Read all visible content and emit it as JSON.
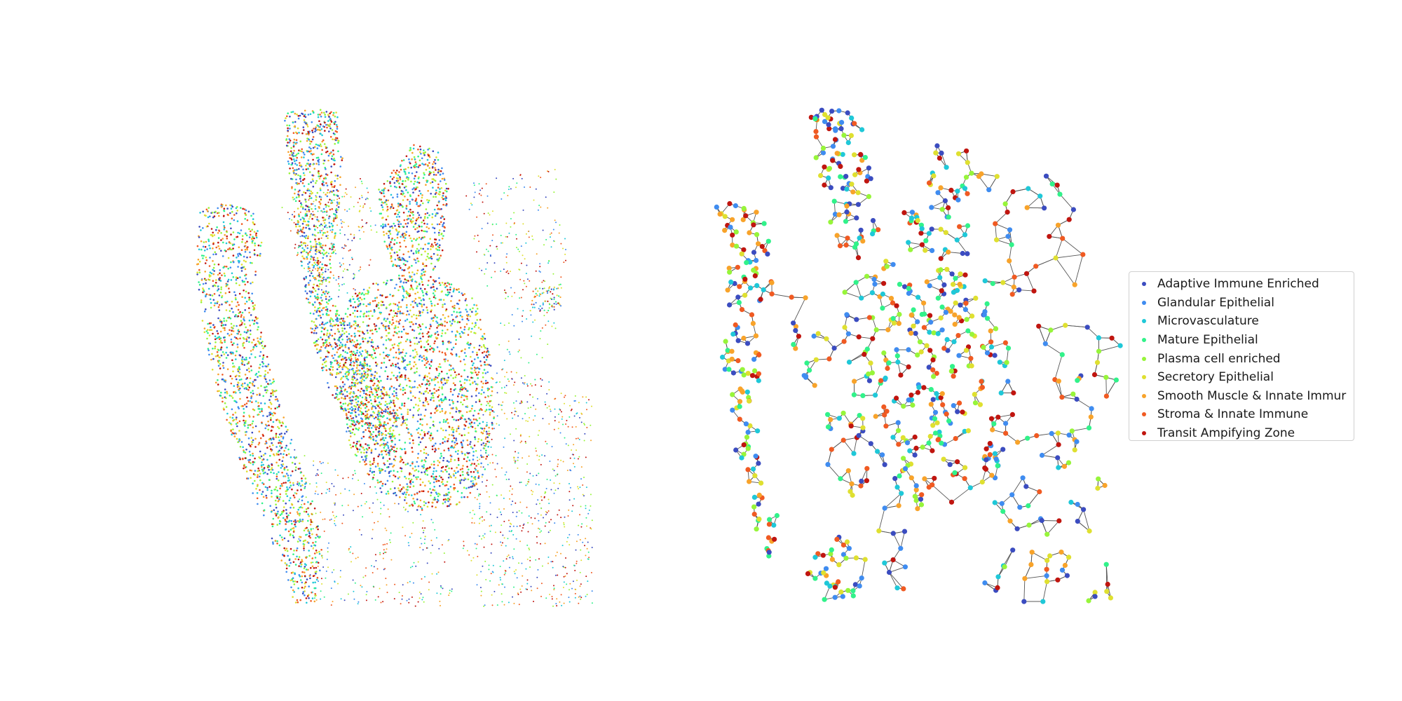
{
  "chart_data": [
    {
      "type": "scatter",
      "panel": "left",
      "title": "",
      "xlabel": "",
      "ylabel": "",
      "axes_visible": false,
      "grid": false,
      "description_of_points": "dense spatial scatter of several thousand cells, colored by niche category"
    },
    {
      "type": "scatter",
      "panel": "right",
      "title": "",
      "xlabel": "",
      "ylabel": "",
      "axes_visible": false,
      "grid": false,
      "graph_edges": true
    }
  ],
  "legend": {
    "placement": "right",
    "entries": [
      {
        "label": "Adaptive Immune Enriched",
        "color": "#3b4cc0"
      },
      {
        "label": "Glandular Epithelial",
        "color": "#3f8cf0"
      },
      {
        "label": "Microvasculature",
        "color": "#1fc8d8"
      },
      {
        "label": "Mature Epithelial",
        "color": "#31f28a"
      },
      {
        "label": "Plasma cell enriched",
        "color": "#97f53a"
      },
      {
        "label": "Secretory Epithelial",
        "color": "#dfe030"
      },
      {
        "label": "Smooth Muscle & Innate Immur",
        "color": "#f8a32a"
      },
      {
        "label": "Stroma & Innate Immune",
        "color": "#f05a22"
      },
      {
        "label": "Transit Ampifying Zone",
        "color": "#c0150f"
      }
    ]
  },
  "colors": {
    "edge": "#555555",
    "background": "#ffffff"
  }
}
